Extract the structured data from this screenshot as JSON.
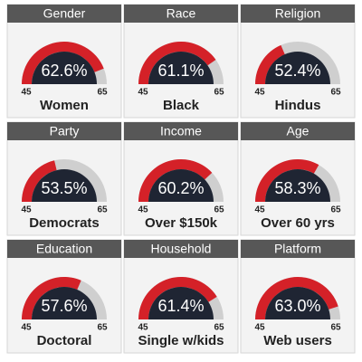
{
  "chart_data": [
    {
      "type": "gauge",
      "title": "Gender",
      "categories": [
        "Women"
      ],
      "values": [
        62.6
      ],
      "value_labels": [
        "62.6%"
      ],
      "ylim": [
        45,
        65
      ],
      "yticks": [
        45,
        65
      ],
      "color": "#d42128",
      "track_color": "#cfcfcf"
    },
    {
      "type": "gauge",
      "title": "Race",
      "categories": [
        "Black"
      ],
      "values": [
        61.1
      ],
      "value_labels": [
        "61.1%"
      ],
      "ylim": [
        45,
        65
      ],
      "yticks": [
        45,
        65
      ],
      "color": "#d42128",
      "track_color": "#cfcfcf"
    },
    {
      "type": "gauge",
      "title": "Religion",
      "categories": [
        "Hindus"
      ],
      "values": [
        52.4
      ],
      "value_labels": [
        "52.4%"
      ],
      "ylim": [
        45,
        65
      ],
      "yticks": [
        45,
        65
      ],
      "color": "#d42128",
      "track_color": "#cfcfcf"
    },
    {
      "type": "gauge",
      "title": "Party",
      "categories": [
        "Democrats"
      ],
      "values": [
        53.5
      ],
      "value_labels": [
        "53.5%"
      ],
      "ylim": [
        45,
        65
      ],
      "yticks": [
        45,
        65
      ],
      "color": "#d42128",
      "track_color": "#cfcfcf"
    },
    {
      "type": "gauge",
      "title": "Income",
      "categories": [
        "Over $150k"
      ],
      "values": [
        60.2
      ],
      "value_labels": [
        "60.2%"
      ],
      "ylim": [
        45,
        65
      ],
      "yticks": [
        45,
        65
      ],
      "color": "#d42128",
      "track_color": "#cfcfcf"
    },
    {
      "type": "gauge",
      "title": "Age",
      "categories": [
        "Over 60 yrs"
      ],
      "values": [
        58.3
      ],
      "value_labels": [
        "58.3%"
      ],
      "ylim": [
        45,
        65
      ],
      "yticks": [
        45,
        65
      ],
      "color": "#d42128",
      "track_color": "#cfcfcf"
    },
    {
      "type": "gauge",
      "title": "Education",
      "categories": [
        "Doctoral"
      ],
      "values": [
        57.6
      ],
      "value_labels": [
        "57.6%"
      ],
      "ylim": [
        45,
        65
      ],
      "yticks": [
        45,
        65
      ],
      "color": "#d42128",
      "track_color": "#cfcfcf"
    },
    {
      "type": "gauge",
      "title": "Household",
      "categories": [
        "Single w/kids"
      ],
      "values": [
        61.4
      ],
      "value_labels": [
        "61.4%"
      ],
      "ylim": [
        45,
        65
      ],
      "yticks": [
        45,
        65
      ],
      "color": "#d42128",
      "track_color": "#cfcfcf"
    },
    {
      "type": "gauge",
      "title": "Platform",
      "categories": [
        "Web users"
      ],
      "values": [
        63.0
      ],
      "value_labels": [
        "63.0%"
      ],
      "ylim": [
        45,
        65
      ],
      "yticks": [
        45,
        65
      ],
      "color": "#d42128",
      "track_color": "#cfcfcf"
    }
  ]
}
